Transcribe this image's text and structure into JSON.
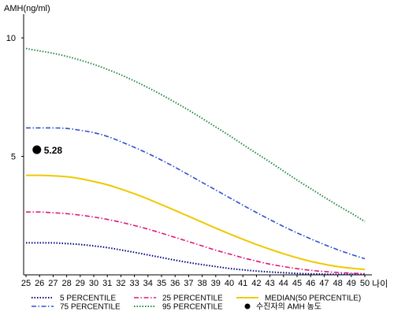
{
  "chart_data": {
    "type": "line",
    "ylabel": "AMH(ng/ml)",
    "xlabel": "나이",
    "x": [
      25,
      26,
      27,
      28,
      29,
      30,
      31,
      32,
      33,
      34,
      35,
      36,
      37,
      38,
      39,
      40,
      41,
      42,
      43,
      44,
      45,
      46,
      47,
      48,
      49,
      50
    ],
    "xlim": [
      25,
      50
    ],
    "ylim": [
      0,
      11
    ],
    "yticks": [
      5,
      10
    ],
    "grid": false,
    "legend_position": "bottom",
    "series": [
      {
        "name": "5 PERCENTILE",
        "color": "#000080",
        "dash": "dotted",
        "values": [
          1.35,
          1.35,
          1.35,
          1.32,
          1.28,
          1.22,
          1.15,
          1.05,
          0.95,
          0.84,
          0.73,
          0.62,
          0.52,
          0.43,
          0.35,
          0.27,
          0.21,
          0.16,
          0.12,
          0.09,
          0.06,
          0.04,
          0.03,
          0.02,
          0.02,
          0.02
        ]
      },
      {
        "name": "25 PERCENTILE",
        "color": "#e0167a",
        "dash": "dashdot",
        "values": [
          2.65,
          2.65,
          2.62,
          2.58,
          2.52,
          2.44,
          2.34,
          2.22,
          2.08,
          1.93,
          1.76,
          1.58,
          1.4,
          1.22,
          1.04,
          0.88,
          0.72,
          0.58,
          0.45,
          0.35,
          0.26,
          0.19,
          0.14,
          0.1,
          0.07,
          0.05
        ]
      },
      {
        "name": "MEDIAN(50 PERCENTILE)",
        "color": "#f0c800",
        "dash": "solid",
        "values": [
          4.2,
          4.2,
          4.18,
          4.14,
          4.06,
          3.94,
          3.8,
          3.62,
          3.42,
          3.2,
          2.96,
          2.72,
          2.47,
          2.22,
          1.97,
          1.73,
          1.5,
          1.28,
          1.08,
          0.89,
          0.72,
          0.57,
          0.45,
          0.35,
          0.28,
          0.23
        ]
      },
      {
        "name": "75 PERCENTILE",
        "color": "#3050d0",
        "dash": "dashdot",
        "values": [
          6.2,
          6.2,
          6.2,
          6.18,
          6.1,
          6.0,
          5.84,
          5.62,
          5.38,
          5.12,
          4.84,
          4.54,
          4.22,
          3.9,
          3.58,
          3.26,
          2.94,
          2.63,
          2.33,
          2.04,
          1.77,
          1.52,
          1.28,
          1.06,
          0.86,
          0.68
        ]
      },
      {
        "name": "95 PERCENTILE",
        "color": "#2a8a4a",
        "dash": "dotted",
        "values": [
          9.55,
          9.45,
          9.35,
          9.22,
          9.06,
          8.88,
          8.67,
          8.44,
          8.18,
          7.9,
          7.6,
          7.28,
          6.95,
          6.6,
          6.24,
          5.88,
          5.5,
          5.13,
          4.76,
          4.38,
          4.0,
          3.64,
          3.28,
          2.93,
          2.6,
          2.25
        ]
      }
    ],
    "marker": {
      "label": "5.28",
      "legend": "수진자의 AMH 농도",
      "x": 25.8,
      "y": 5.28,
      "color": "#000000"
    }
  }
}
